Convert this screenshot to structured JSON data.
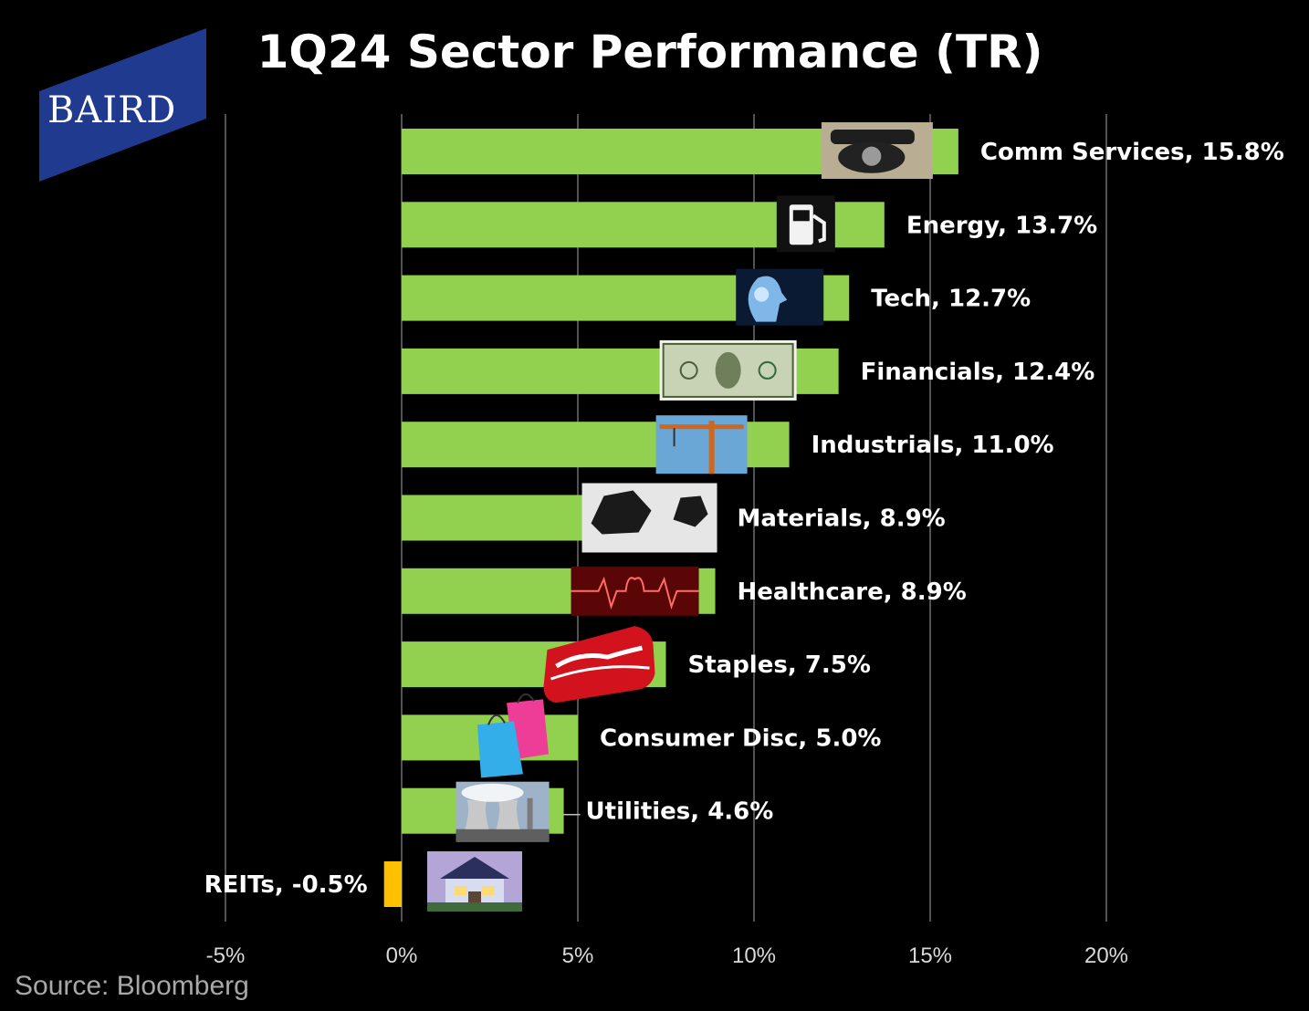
{
  "header": {
    "title": "1Q24 Sector Performance (TR)",
    "logo_text": "BAIRD"
  },
  "source": "Source: Bloomberg",
  "colors": {
    "positive_bar": "#92D050",
    "negative_bar": "#FFC000",
    "background": "#000000",
    "logo_blue": "#1F3A8F"
  },
  "chart_data": {
    "type": "bar",
    "orientation": "horizontal",
    "title": "1Q24 Sector Performance (TR)",
    "xlim": [
      -5,
      20
    ],
    "x_ticks": [
      -5,
      0,
      5,
      10,
      15,
      20
    ],
    "x_tick_labels": [
      "-5%",
      "0%",
      "5%",
      "10%",
      "15%",
      "20%"
    ],
    "grid": "vertical",
    "categories": [
      "Comm Services",
      "Energy",
      "Tech",
      "Financials",
      "Industrials",
      "Materials",
      "Healthcare",
      "Staples",
      "Consumer Disc",
      "Utilities",
      "REITs"
    ],
    "values": [
      15.8,
      13.7,
      12.7,
      12.4,
      11.0,
      8.9,
      8.9,
      7.5,
      5.0,
      4.6,
      -0.5
    ],
    "data_labels": [
      "Comm Services, 15.8%",
      "Energy, 13.7%",
      "Tech, 12.7%",
      "Financials, 12.4%",
      "Industrials, 11.0%",
      "Materials, 8.9%",
      "Healthcare, 8.9%",
      "Staples, 7.5%",
      "Consumer Disc, 5.0%",
      "Utilities, 4.6%",
      "REITs, -0.5%"
    ],
    "icons": [
      "rotary-telephone-icon",
      "fuel-pump-icon",
      "digital-head-icon",
      "dollar-bill-icon",
      "construction-crane-icon",
      "coal-lumps-icon",
      "heartbeat-icon",
      "soda-can-icon",
      "shopping-bags-icon",
      "power-plant-icon",
      "house-icon"
    ]
  }
}
